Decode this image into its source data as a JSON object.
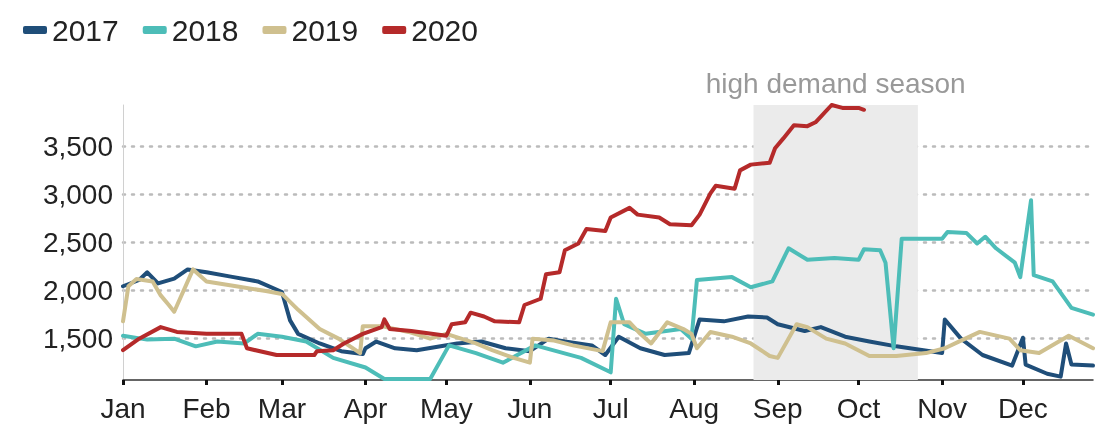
{
  "chart_data": {
    "type": "line",
    "legend": "top left",
    "grid": "y",
    "marker": "none",
    "line_style": "solid",
    "xlim": [
      "--01-01",
      "--12-27"
    ],
    "ylim": [
      1070,
      3930
    ],
    "xticks": [
      {
        "value": "--01-01",
        "label": "Jan"
      },
      {
        "value": "--02-01",
        "label": "Feb"
      },
      {
        "value": "--03-01",
        "label": "Mar"
      },
      {
        "value": "--04-01",
        "label": "Apr"
      },
      {
        "value": "--05-01",
        "label": "May"
      },
      {
        "value": "--06-01",
        "label": "Jun"
      },
      {
        "value": "--07-01",
        "label": "Jul"
      },
      {
        "value": "--08-01",
        "label": "Aug"
      },
      {
        "value": "--09-01",
        "label": "Sep"
      },
      {
        "value": "--10-01",
        "label": "Oct"
      },
      {
        "value": "--11-01",
        "label": "Nov"
      },
      {
        "value": "--12-01",
        "label": "Dec"
      }
    ],
    "yticks": [
      {
        "value": 1500,
        "label": "1,500"
      },
      {
        "value": 2000,
        "label": "2,000"
      },
      {
        "value": 2500,
        "label": "2,500"
      },
      {
        "value": 3000,
        "label": "3,000"
      },
      {
        "value": 3500,
        "label": "3,500"
      }
    ],
    "bands": [
      {
        "axis": "x",
        "from": "--08-23",
        "to": "--10-23",
        "label": "high demand season",
        "color": "#ebebeb"
      }
    ],
    "series": [
      {
        "name": "2017",
        "color": "#1f4e79",
        "x": [
          "--01-01",
          "--01-07",
          "--01-10",
          "--01-14",
          "--01-20",
          "--01-25",
          "--02-01",
          "--02-10",
          "--02-20",
          "--03-01",
          "--03-04",
          "--03-07",
          "--03-15",
          "--03-23",
          "--03-31",
          "--04-01",
          "--04-05",
          "--04-12",
          "--04-20",
          "--05-05",
          "--05-14",
          "--05-23",
          "--06-01",
          "--06-08",
          "--06-14",
          "--06-24",
          "--06-29",
          "--07-04",
          "--07-12",
          "--07-21",
          "--07-30",
          "--08-03",
          "--08-12",
          "--08-21",
          "--08-28",
          "--09-01",
          "--09-11",
          "--09-17",
          "--09-26",
          "--10-05",
          "--10-15",
          "--11-01",
          "--11-02",
          "--11-08",
          "--11-16",
          "--11-27",
          "--12-01",
          "--12-02",
          "--12-10",
          "--12-15",
          "--12-17",
          "--12-19",
          "--12-27"
        ],
        "values": [
          2045,
          2110,
          2190,
          2075,
          2125,
          2220,
          2190,
          2145,
          2095,
          1985,
          1690,
          1550,
          1450,
          1370,
          1340,
          1400,
          1470,
          1400,
          1380,
          1450,
          1470,
          1400,
          1370,
          1500,
          1470,
          1430,
          1330,
          1520,
          1400,
          1330,
          1350,
          1700,
          1680,
          1730,
          1720,
          1650,
          1580,
          1620,
          1520,
          1470,
          1420,
          1350,
          1700,
          1500,
          1330,
          1220,
          1510,
          1230,
          1135,
          1105,
          1450,
          1230,
          1220
        ]
      },
      {
        "name": "2018",
        "color": "#4dbdb8",
        "x": [
          "--01-01",
          "--01-10",
          "--01-20",
          "--01-28",
          "--02-05",
          "--02-15",
          "--02-20",
          "--03-01",
          "--03-10",
          "--03-20",
          "--04-01",
          "--04-08",
          "--04-25",
          "--05-02",
          "--05-12",
          "--05-22",
          "--06-03",
          "--06-20",
          "--07-01",
          "--07-03",
          "--07-06",
          "--07-14",
          "--07-27",
          "--07-31",
          "--08-02",
          "--08-15",
          "--08-22",
          "--08-30",
          "--09-05",
          "--09-12",
          "--09-22",
          "--10-01",
          "--10-03",
          "--10-09",
          "--10-11",
          "--10-14",
          "--10-17",
          "--11-01",
          "--11-03",
          "--11-10",
          "--11-14",
          "--11-17",
          "--11-21",
          "--11-28",
          "--11-30",
          "--12-04",
          "--12-05",
          "--12-12",
          "--12-19",
          "--12-27"
        ],
        "values": [
          1530,
          1490,
          1500,
          1420,
          1470,
          1450,
          1550,
          1520,
          1470,
          1300,
          1200,
          1080,
          1080,
          1430,
          1350,
          1250,
          1430,
          1300,
          1150,
          1915,
          1650,
          1550,
          1600,
          1500,
          2110,
          2140,
          2035,
          2095,
          2440,
          2320,
          2340,
          2320,
          2430,
          2420,
          2290,
          1400,
          2540,
          2540,
          2610,
          2600,
          2490,
          2560,
          2440,
          2290,
          2140,
          2940,
          2160,
          2095,
          1820,
          1750
        ]
      },
      {
        "name": "2019",
        "color": "#cfc08f",
        "x": [
          "--01-01",
          "--01-03",
          "--01-06",
          "--01-12",
          "--01-15",
          "--01-18",
          "--01-20",
          "--01-27",
          "--02-01",
          "--02-12",
          "--02-23",
          "--03-01",
          "--03-07",
          "--03-15",
          "--03-22",
          "--03-30",
          "--03-31",
          "--04-07",
          "--04-17",
          "--04-25",
          "--05-01",
          "--05-12",
          "--05-18",
          "--05-26",
          "--06-01",
          "--06-02",
          "--06-10",
          "--06-17",
          "--06-28",
          "--07-01",
          "--07-08",
          "--07-12",
          "--07-16",
          "--07-22",
          "--07-28",
          "--07-31",
          "--08-02",
          "--08-07",
          "--08-15",
          "--08-22",
          "--08-29",
          "--09-01",
          "--09-08",
          "--09-12",
          "--09-19",
          "--09-26",
          "--10-05",
          "--10-15",
          "--10-26",
          "--11-02",
          "--11-08",
          "--11-15",
          "--11-26",
          "--11-30",
          "--12-07",
          "--12-18",
          "--12-27"
        ],
        "values": [
          1680,
          2045,
          2120,
          2095,
          1950,
          1850,
          1780,
          2220,
          2095,
          2045,
          1995,
          1965,
          1800,
          1600,
          1500,
          1350,
          1630,
          1630,
          1570,
          1500,
          1550,
          1450,
          1380,
          1300,
          1250,
          1500,
          1480,
          1430,
          1370,
          1670,
          1670,
          1550,
          1450,
          1670,
          1600,
          1550,
          1400,
          1570,
          1520,
          1450,
          1320,
          1300,
          1650,
          1620,
          1500,
          1450,
          1320,
          1320,
          1350,
          1400,
          1480,
          1570,
          1500,
          1380,
          1350,
          1530,
          1400
        ]
      },
      {
        "name": "2020",
        "color": "#b52a2a",
        "x": [
          "--01-01",
          "--01-07",
          "--01-15",
          "--01-21",
          "--02-01",
          "--02-14",
          "--02-16",
          "--02-27",
          "--03-13",
          "--03-14",
          "--03-20",
          "--03-24",
          "--03-31",
          "--04-07",
          "--04-08",
          "--04-10",
          "--04-18",
          "--05-01",
          "--05-03",
          "--05-08",
          "--05-10",
          "--05-15",
          "--05-19",
          "--05-28",
          "--05-30",
          "--06-05",
          "--06-07",
          "--06-12",
          "--06-14",
          "--06-19",
          "--06-22",
          "--06-29",
          "--07-01",
          "--07-08",
          "--07-11",
          "--07-19",
          "--07-23",
          "--07-31",
          "--08-03",
          "--08-07",
          "--08-09",
          "--08-16",
          "--08-18",
          "--08-22",
          "--08-29",
          "--08-31",
          "--09-03",
          "--09-07",
          "--09-12",
          "--09-15",
          "--09-17",
          "--09-21",
          "--09-25",
          "--10-01",
          "--10-03"
        ],
        "values": [
          1380,
          1500,
          1620,
          1570,
          1550,
          1550,
          1400,
          1330,
          1330,
          1370,
          1380,
          1450,
          1550,
          1620,
          1700,
          1600,
          1580,
          1530,
          1650,
          1670,
          1770,
          1730,
          1680,
          1670,
          1850,
          1915,
          2170,
          2190,
          2420,
          2490,
          2640,
          2620,
          2760,
          2860,
          2790,
          2760,
          2690,
          2680,
          2790,
          3010,
          3090,
          3060,
          3250,
          3310,
          3330,
          3480,
          3580,
          3720,
          3710,
          3750,
          3810,
          3930,
          3900,
          3900,
          3880
        ]
      }
    ]
  }
}
